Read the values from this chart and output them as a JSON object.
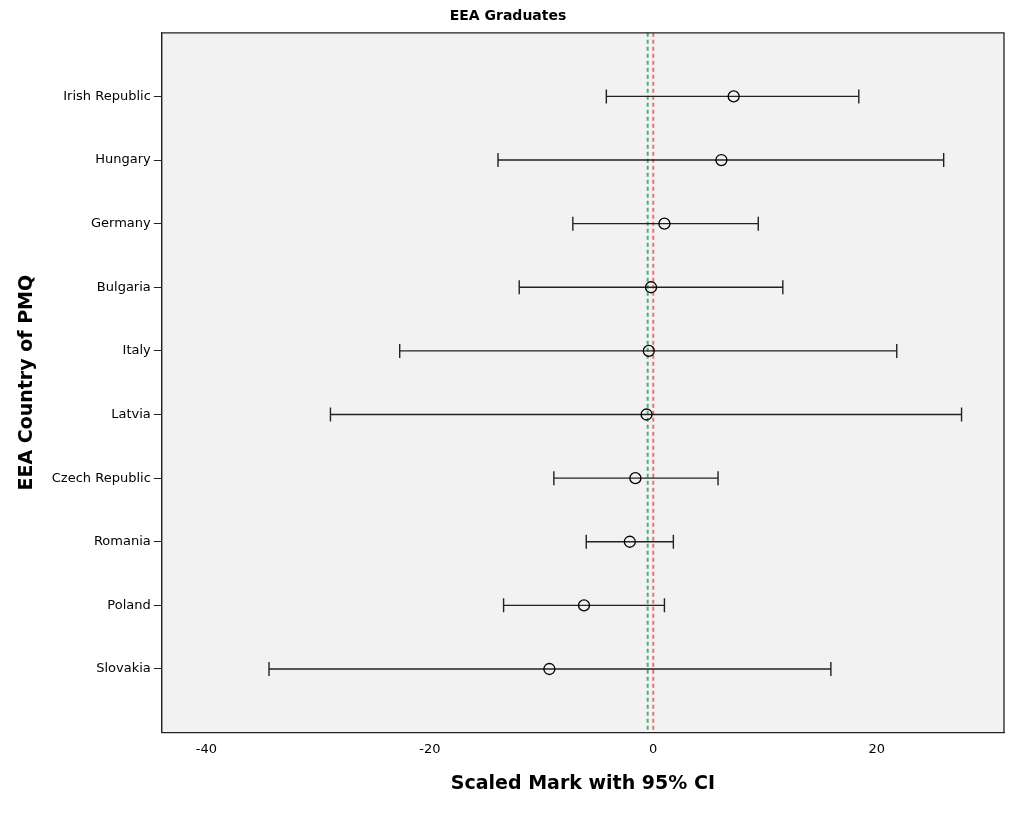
{
  "chart_data": {
    "type": "scatter",
    "orientation": "horizontal",
    "title": "EEA Graduates",
    "xlabel": "Scaled Mark with 95% CI",
    "ylabel": "EEA Country of PMQ",
    "categories": [
      "Irish Republic",
      "Hungary",
      "Germany",
      "Bulgaria",
      "Italy",
      "Latvia",
      "Czech Republic",
      "Romania",
      "Poland",
      "Slovakia"
    ],
    "values": [
      7.2,
      6.1,
      1.0,
      -0.2,
      -0.4,
      -0.6,
      -1.6,
      -2.1,
      -6.2,
      -9.3
    ],
    "errors": [
      [
        -4.2,
        18.4
      ],
      [
        -13.9,
        26.0
      ],
      [
        -7.2,
        9.4
      ],
      [
        -12.0,
        11.6
      ],
      [
        -22.7,
        21.8
      ],
      [
        -28.9,
        27.6
      ],
      [
        -8.9,
        5.8
      ],
      [
        -6.0,
        1.8
      ],
      [
        -13.4,
        1.0
      ],
      [
        -34.4,
        15.9
      ]
    ],
    "color": "#000000",
    "marker": "circle",
    "grid": false,
    "legend": false,
    "xlim": [
      -44,
      31.4
    ],
    "xticks": [
      -40,
      -20,
      0,
      20
    ],
    "ref_lines": [
      {
        "axis": "x",
        "value": -0.5,
        "color": "#4caf7a",
        "line_style": "dashed"
      },
      {
        "axis": "x",
        "value": 0,
        "color": "#e8736c",
        "line_style": "dashed"
      }
    ]
  }
}
